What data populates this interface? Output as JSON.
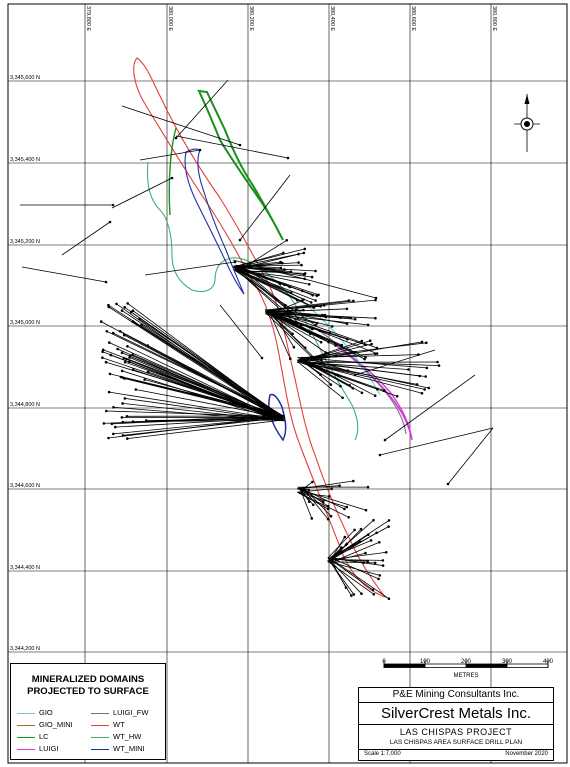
{
  "map": {
    "easting_labels": [
      "379,800 E",
      "380,000 E",
      "380,200 E",
      "380,400 E",
      "380,600 E",
      "380,800 E"
    ],
    "northing_labels": [
      "3,345,600 N",
      "3,345,400 N",
      "3,345,200 N",
      "3,345,000 N",
      "3,344,800 N",
      "3,344,600 N",
      "3,344,400 N",
      "3,344,200 N"
    ],
    "north_arrow": "north-arrow-icon"
  },
  "scalebar": {
    "ticks": [
      "0",
      "100",
      "200",
      "300",
      "400"
    ],
    "unit": "METRES"
  },
  "legend": {
    "title_line1": "MINERALIZED DOMAINS",
    "title_line2": "PROJECTED TO SURFACE",
    "items": [
      {
        "label": "GIO",
        "color": "#5fd0d0"
      },
      {
        "label": "GIO_MINI",
        "color": "#9c6b2c"
      },
      {
        "label": "LC",
        "color": "#1a8f1a"
      },
      {
        "label": "LUIGI",
        "color": "#d83ad8"
      },
      {
        "label": "LUIGI_FW",
        "color": "#7a6a9a"
      },
      {
        "label": "WT",
        "color": "#e0403a"
      },
      {
        "label": "WT_HW",
        "color": "#3fb07a"
      },
      {
        "label": "WT_MINI",
        "color": "#1f2ea8"
      }
    ]
  },
  "title_block": {
    "consultant": "P&E Mining Consultants Inc.",
    "company": "SilverCrest Metals Inc.",
    "project": "LAS CHISPAS PROJECT",
    "drawing": "LAS CHISPAS AREA SURFACE DRILL PLAN",
    "scale": "Scale 1:7,000",
    "date": "November 2020"
  }
}
